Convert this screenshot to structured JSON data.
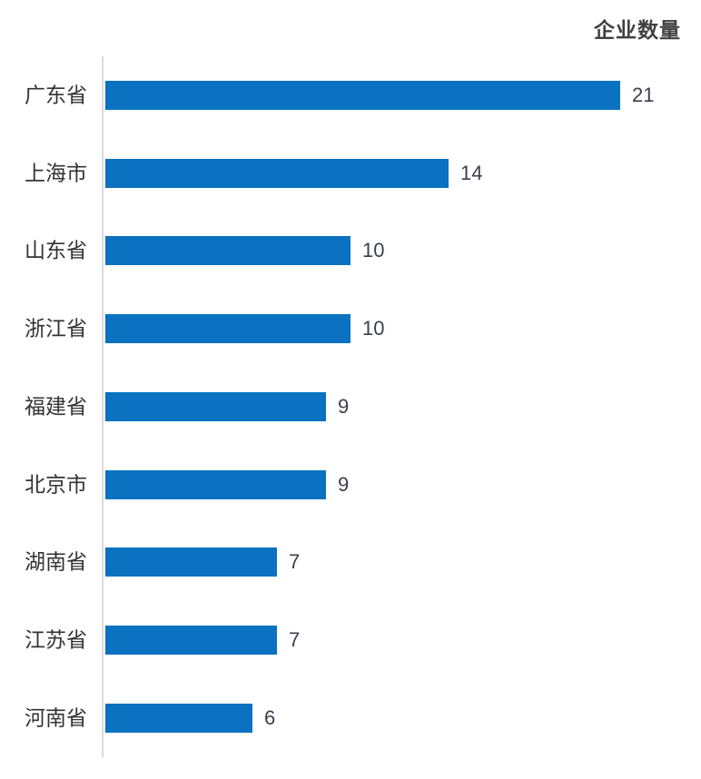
{
  "chart_data": {
    "type": "bar",
    "orientation": "horizontal",
    "title": "企业数量",
    "categories": [
      "广东省",
      "上海市",
      "山东省",
      "浙江省",
      "福建省",
      "北京市",
      "湖南省",
      "江苏省",
      "河南省"
    ],
    "values": [
      21,
      14,
      10,
      10,
      9,
      9,
      7,
      7,
      6
    ],
    "xlim": [
      0,
      21
    ],
    "grid": false,
    "legend_position": "none",
    "value_labels_shown": true,
    "colors": {
      "bar": "#0a72c0",
      "axis_line": "#d9d9d9",
      "title_text": "#404040",
      "category_text": "#333333",
      "value_text": "#3b3f4e"
    }
  }
}
